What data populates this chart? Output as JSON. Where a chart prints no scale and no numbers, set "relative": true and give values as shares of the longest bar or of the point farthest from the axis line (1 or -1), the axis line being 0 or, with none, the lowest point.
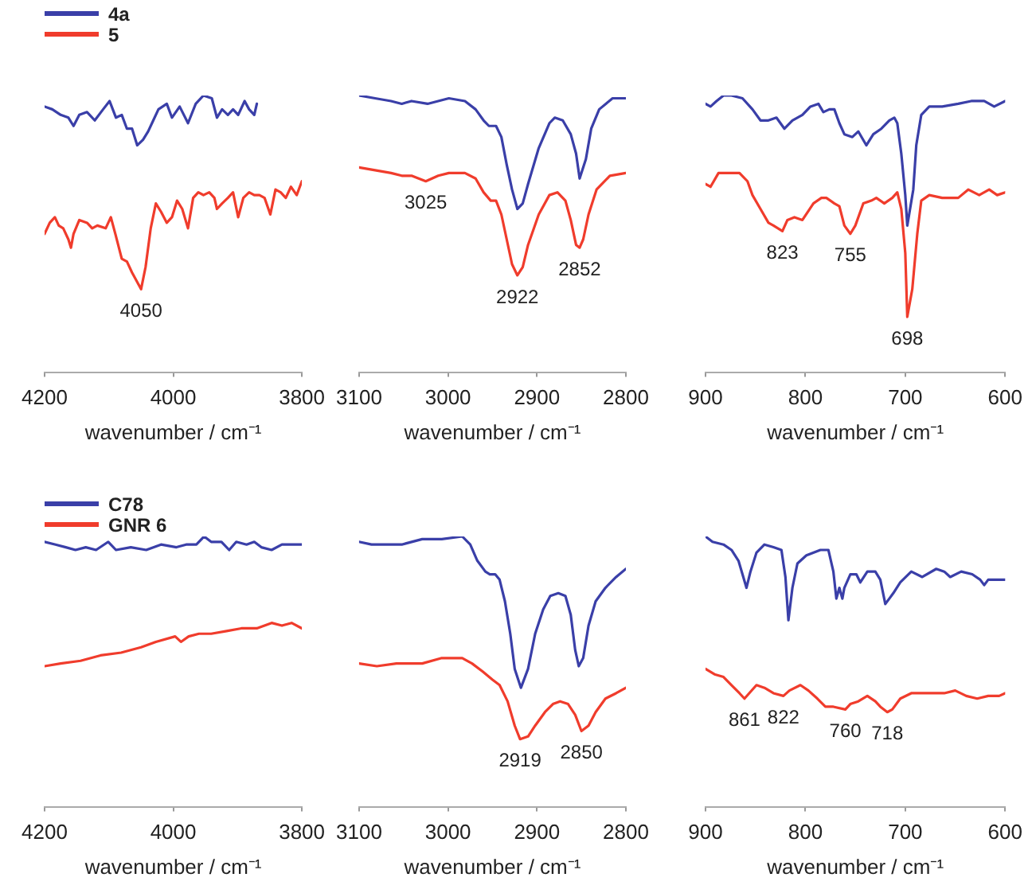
{
  "chart_data": [
    {
      "type": "line",
      "relative": true,
      "marker": "none",
      "legend": "top left",
      "xlabel": "wavenumber / cm⁻¹",
      "xlim": [
        4200,
        3800
      ],
      "xticks": [
        4200,
        4000,
        3800
      ],
      "series": [
        {
          "name": "4a",
          "color": "#3a3fa8",
          "x": [
            4200,
            4188,
            4175,
            4163,
            4155,
            4146,
            4134,
            4122,
            4109,
            4099,
            4089,
            4080,
            4072,
            4064,
            4056,
            4047,
            4039,
            4031,
            4023,
            4010,
            4002,
            3990,
            3977,
            3965,
            3953,
            3940,
            3932,
            3924,
            3915,
            3907,
            3899,
            3889,
            3882,
            3874,
            3870
          ],
          "values": [
            0.96,
            0.95,
            0.93,
            0.92,
            0.89,
            0.93,
            0.94,
            0.91,
            0.95,
            0.98,
            0.92,
            0.93,
            0.88,
            0.88,
            0.82,
            0.84,
            0.87,
            0.91,
            0.95,
            0.97,
            0.92,
            0.96,
            0.9,
            0.97,
            1.0,
            0.99,
            0.92,
            0.95,
            0.93,
            0.95,
            0.93,
            0.98,
            0.95,
            0.93,
            0.97
          ]
        },
        {
          "name": "5",
          "color": "#f03c2c",
          "x": [
            4200,
            4192,
            4184,
            4178,
            4171,
            4163,
            4159,
            4155,
            4146,
            4134,
            4126,
            4118,
            4105,
            4097,
            4090,
            4080,
            4072,
            4064,
            4050,
            4043,
            4035,
            4027,
            4019,
            4010,
            4002,
            3994,
            3986,
            3977,
            3969,
            3961,
            3953,
            3944,
            3936,
            3932,
            3924,
            3915,
            3907,
            3899,
            3891,
            3882,
            3874,
            3866,
            3858,
            3849,
            3841,
            3833,
            3825,
            3817,
            3808,
            3800
          ],
          "values": [
            0.5,
            0.54,
            0.56,
            0.53,
            0.52,
            0.48,
            0.45,
            0.5,
            0.55,
            0.54,
            0.52,
            0.53,
            0.52,
            0.56,
            0.5,
            0.41,
            0.4,
            0.36,
            0.3,
            0.38,
            0.52,
            0.61,
            0.58,
            0.54,
            0.56,
            0.62,
            0.59,
            0.52,
            0.63,
            0.65,
            0.64,
            0.65,
            0.63,
            0.59,
            0.61,
            0.63,
            0.65,
            0.56,
            0.63,
            0.65,
            0.64,
            0.64,
            0.63,
            0.57,
            0.66,
            0.65,
            0.63,
            0.67,
            0.64,
            0.69
          ]
        }
      ],
      "annotations": [
        {
          "text": "4050",
          "x": 4050,
          "y": 0.3
        }
      ]
    },
    {
      "type": "line",
      "relative": true,
      "marker": "none",
      "xlabel": "wavenumber / cm⁻¹",
      "xlim": [
        3100,
        2800
      ],
      "xticks": [
        3100,
        3000,
        2900,
        2800
      ],
      "series": [
        {
          "color": "#3a3fa8",
          "x": [
            3100,
            3082,
            3064,
            3052,
            3041,
            3023,
            3011,
            2999,
            2981,
            2969,
            2960,
            2954,
            2946,
            2940,
            2934,
            2928,
            2922,
            2916,
            2910,
            2898,
            2886,
            2880,
            2871,
            2862,
            2856,
            2852,
            2845,
            2839,
            2830,
            2815,
            2800
          ],
          "values": [
            1.0,
            0.99,
            0.98,
            0.97,
            0.98,
            0.97,
            0.98,
            0.99,
            0.98,
            0.95,
            0.91,
            0.89,
            0.89,
            0.85,
            0.75,
            0.66,
            0.59,
            0.61,
            0.68,
            0.81,
            0.9,
            0.92,
            0.91,
            0.86,
            0.79,
            0.7,
            0.77,
            0.88,
            0.95,
            0.99,
            0.99
          ]
        },
        {
          "color": "#f03c2c",
          "x": [
            3100,
            3082,
            3064,
            3052,
            3041,
            3025,
            3011,
            2999,
            2981,
            2969,
            2960,
            2952,
            2946,
            2940,
            2934,
            2928,
            2922,
            2916,
            2910,
            2898,
            2886,
            2877,
            2868,
            2862,
            2856,
            2852,
            2848,
            2842,
            2833,
            2818,
            2800
          ],
          "values": [
            0.74,
            0.73,
            0.72,
            0.71,
            0.71,
            0.69,
            0.71,
            0.72,
            0.72,
            0.7,
            0.65,
            0.62,
            0.62,
            0.57,
            0.48,
            0.39,
            0.35,
            0.38,
            0.46,
            0.57,
            0.64,
            0.65,
            0.62,
            0.55,
            0.46,
            0.45,
            0.48,
            0.57,
            0.66,
            0.71,
            0.72
          ]
        }
      ],
      "annotations": [
        {
          "text": "3025",
          "x": 3025,
          "y": 0.69
        },
        {
          "text": "2922",
          "x": 2922,
          "y": 0.35
        },
        {
          "text": "2852",
          "x": 2852,
          "y": 0.45
        }
      ]
    },
    {
      "type": "line",
      "relative": true,
      "marker": "none",
      "xlabel": "wavenumber / cm⁻¹",
      "xlim": [
        900,
        600
      ],
      "xticks": [
        900,
        800,
        700,
        600
      ],
      "series": [
        {
          "color": "#3a3fa8",
          "x": [
            900,
            895,
            889,
            882,
            874,
            863,
            853,
            845,
            837,
            829,
            821,
            813,
            803,
            795,
            787,
            782,
            776,
            771,
            766,
            761,
            753,
            747,
            739,
            732,
            724,
            716,
            711,
            708,
            704,
            700,
            698,
            692,
            689,
            684,
            676,
            663,
            647,
            634,
            621,
            611,
            600
          ],
          "values": [
            0.97,
            0.96,
            0.98,
            1.0,
            1.0,
            0.99,
            0.95,
            0.91,
            0.91,
            0.92,
            0.88,
            0.91,
            0.93,
            0.96,
            0.97,
            0.94,
            0.95,
            0.95,
            0.9,
            0.86,
            0.85,
            0.87,
            0.82,
            0.86,
            0.88,
            0.91,
            0.92,
            0.9,
            0.79,
            0.64,
            0.53,
            0.66,
            0.82,
            0.93,
            0.96,
            0.96,
            0.97,
            0.98,
            0.98,
            0.96,
            0.98
          ]
        },
        {
          "color": "#f03c2c",
          "x": [
            900,
            895,
            887,
            876,
            866,
            858,
            853,
            845,
            837,
            832,
            823,
            818,
            811,
            803,
            792,
            784,
            779,
            771,
            766,
            761,
            755,
            750,
            742,
            734,
            729,
            721,
            713,
            708,
            704,
            700,
            698,
            693,
            688,
            684,
            676,
            663,
            647,
            637,
            626,
            616,
            608,
            600
          ],
          "values": [
            0.68,
            0.67,
            0.72,
            0.72,
            0.72,
            0.69,
            0.64,
            0.59,
            0.54,
            0.53,
            0.51,
            0.55,
            0.56,
            0.55,
            0.61,
            0.63,
            0.63,
            0.61,
            0.6,
            0.53,
            0.5,
            0.53,
            0.61,
            0.62,
            0.63,
            0.61,
            0.63,
            0.65,
            0.59,
            0.43,
            0.2,
            0.3,
            0.5,
            0.62,
            0.64,
            0.63,
            0.63,
            0.66,
            0.64,
            0.66,
            0.64,
            0.65
          ]
        }
      ],
      "annotations": [
        {
          "text": "823",
          "x": 823,
          "y": 0.51
        },
        {
          "text": "755",
          "x": 755,
          "y": 0.5
        },
        {
          "text": "698",
          "x": 698,
          "y": 0.2
        }
      ]
    },
    {
      "type": "line",
      "relative": true,
      "marker": "none",
      "legend": "top left",
      "xlabel": "wavenumber / cm⁻¹",
      "xlim": [
        4200,
        3800
      ],
      "xticks": [
        4200,
        4000,
        3800
      ],
      "series": [
        {
          "name": "C78",
          "color": "#3a3fa8",
          "x": [
            4200,
            4183,
            4167,
            4152,
            4136,
            4120,
            4101,
            4089,
            4066,
            4042,
            4019,
            3995,
            3980,
            3964,
            3952,
            3941,
            3925,
            3913,
            3902,
            3886,
            3874,
            3863,
            3847,
            3831,
            3816,
            3800
          ],
          "values": [
            0.98,
            0.97,
            0.96,
            0.95,
            0.96,
            0.95,
            0.98,
            0.95,
            0.96,
            0.95,
            0.97,
            0.96,
            0.97,
            0.97,
            1.0,
            0.98,
            0.98,
            0.95,
            0.98,
            0.97,
            0.98,
            0.96,
            0.95,
            0.97,
            0.97,
            0.97
          ]
        },
        {
          "name": "GNR 6",
          "color": "#f03c2c",
          "x": [
            4200,
            4175,
            4144,
            4113,
            4081,
            4050,
            4027,
            3997,
            3988,
            3976,
            3960,
            3941,
            3917,
            3894,
            3870,
            3847,
            3831,
            3816,
            3800
          ],
          "values": [
            0.52,
            0.53,
            0.54,
            0.56,
            0.57,
            0.59,
            0.61,
            0.63,
            0.61,
            0.63,
            0.64,
            0.64,
            0.65,
            0.66,
            0.66,
            0.68,
            0.67,
            0.68,
            0.66
          ]
        }
      ]
    },
    {
      "type": "line",
      "relative": true,
      "marker": "none",
      "xlabel": "wavenumber / cm⁻¹",
      "xlim": [
        3100,
        2800
      ],
      "xticks": [
        3100,
        3000,
        2900,
        2800
      ],
      "series": [
        {
          "color": "#3a3fa8",
          "x": [
            3100,
            3086,
            3069,
            3052,
            3029,
            3007,
            2984,
            2975,
            2967,
            2958,
            2953,
            2947,
            2942,
            2936,
            2930,
            2925,
            2918,
            2910,
            2902,
            2893,
            2885,
            2876,
            2868,
            2862,
            2857,
            2853,
            2848,
            2842,
            2834,
            2823,
            2811,
            2800
          ],
          "values": [
            0.98,
            0.97,
            0.97,
            0.97,
            0.99,
            0.99,
            1.0,
            0.97,
            0.91,
            0.87,
            0.86,
            0.86,
            0.84,
            0.76,
            0.64,
            0.51,
            0.44,
            0.51,
            0.64,
            0.73,
            0.78,
            0.79,
            0.78,
            0.71,
            0.58,
            0.52,
            0.55,
            0.67,
            0.76,
            0.81,
            0.85,
            0.88
          ]
        },
        {
          "color": "#f03c2c",
          "x": [
            3100,
            3080,
            3058,
            3029,
            3007,
            2984,
            2973,
            2961,
            2950,
            2942,
            2933,
            2925,
            2919,
            2910,
            2902,
            2891,
            2882,
            2874,
            2865,
            2857,
            2850,
            2842,
            2834,
            2823,
            2811,
            2800
          ],
          "values": [
            0.53,
            0.52,
            0.53,
            0.53,
            0.55,
            0.55,
            0.53,
            0.5,
            0.47,
            0.45,
            0.39,
            0.3,
            0.25,
            0.26,
            0.3,
            0.35,
            0.38,
            0.39,
            0.38,
            0.34,
            0.28,
            0.3,
            0.35,
            0.4,
            0.42,
            0.44
          ]
        }
      ],
      "annotations": [
        {
          "text": "2919",
          "x": 2919,
          "y": 0.25
        },
        {
          "text": "2850",
          "x": 2850,
          "y": 0.28
        }
      ]
    },
    {
      "type": "line",
      "relative": true,
      "marker": "none",
      "xlabel": "wavenumber / cm⁻¹",
      "xlim": [
        900,
        600
      ],
      "xticks": [
        900,
        800,
        700,
        600
      ],
      "series": [
        {
          "color": "#3a3fa8",
          "x": [
            900,
            893,
            882,
            874,
            867,
            863,
            859,
            855,
            849,
            841,
            832,
            824,
            820,
            817,
            813,
            808,
            799,
            785,
            777,
            772,
            769,
            766,
            763,
            761,
            755,
            749,
            745,
            738,
            730,
            725,
            720,
            716,
            712,
            705,
            694,
            683,
            669,
            661,
            655,
            644,
            633,
            625,
            621,
            617,
            608,
            600
          ],
          "values": [
            1.0,
            0.98,
            0.97,
            0.95,
            0.91,
            0.86,
            0.81,
            0.87,
            0.94,
            0.97,
            0.96,
            0.95,
            0.85,
            0.69,
            0.81,
            0.9,
            0.93,
            0.95,
            0.95,
            0.87,
            0.77,
            0.81,
            0.77,
            0.81,
            0.86,
            0.86,
            0.83,
            0.87,
            0.87,
            0.84,
            0.75,
            0.77,
            0.79,
            0.83,
            0.87,
            0.85,
            0.88,
            0.87,
            0.85,
            0.87,
            0.86,
            0.84,
            0.82,
            0.84,
            0.84,
            0.84
          ]
        },
        {
          "color": "#f03c2c",
          "x": [
            900,
            891,
            882,
            874,
            866,
            861,
            849,
            841,
            832,
            822,
            816,
            805,
            797,
            788,
            780,
            772,
            760,
            755,
            747,
            738,
            730,
            725,
            718,
            713,
            705,
            694,
            677,
            661,
            650,
            639,
            628,
            617,
            606,
            600
          ],
          "values": [
            0.51,
            0.49,
            0.48,
            0.45,
            0.42,
            0.4,
            0.45,
            0.44,
            0.42,
            0.41,
            0.43,
            0.45,
            0.43,
            0.4,
            0.37,
            0.37,
            0.36,
            0.38,
            0.39,
            0.41,
            0.39,
            0.37,
            0.35,
            0.36,
            0.4,
            0.42,
            0.42,
            0.42,
            0.43,
            0.41,
            0.4,
            0.41,
            0.41,
            0.42
          ]
        }
      ],
      "annotations": [
        {
          "text": "861",
          "x": 861,
          "y": 0.4
        },
        {
          "text": "822",
          "x": 822,
          "y": 0.41
        },
        {
          "text": "760",
          "x": 760,
          "y": 0.36
        },
        {
          "text": "718",
          "x": 718,
          "y": 0.35
        }
      ]
    }
  ]
}
